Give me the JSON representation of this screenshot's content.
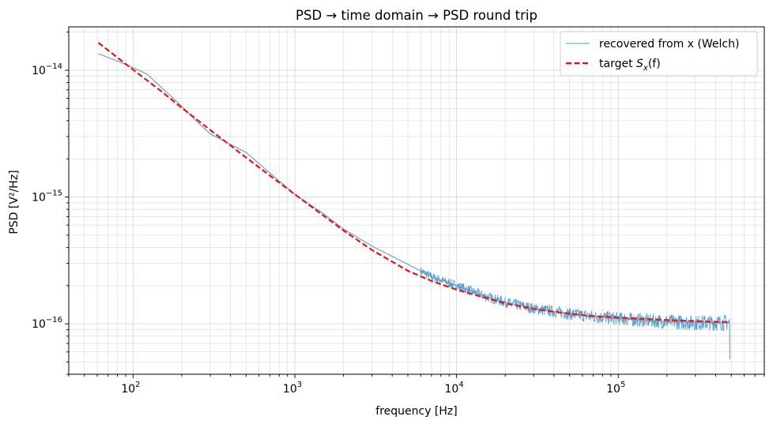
{
  "chart_data": {
    "type": "line",
    "title": "PSD → time domain → PSD round trip",
    "xlabel": "frequency [Hz]",
    "ylabel": "PSD  [V²/Hz]",
    "xscale": "log",
    "yscale": "log",
    "xlim": [
      40,
      800000
    ],
    "ylim": [
      4e-17,
      2.2e-14
    ],
    "grid": true,
    "legend_position": "top-right",
    "x_tick_labels": [
      {
        "value": 100,
        "base": "10",
        "exp": "2"
      },
      {
        "value": 1000,
        "base": "10",
        "exp": "3"
      },
      {
        "value": 10000,
        "base": "10",
        "exp": "4"
      },
      {
        "value": 100000,
        "base": "10",
        "exp": "5"
      }
    ],
    "y_tick_labels": [
      {
        "value": 1e-14,
        "base": "10",
        "exp": "−14"
      },
      {
        "value": 1e-15,
        "base": "10",
        "exp": "−15"
      },
      {
        "value": 1e-16,
        "base": "10",
        "exp": "−16"
      }
    ],
    "series": [
      {
        "name": "recovered from x (Welch)",
        "color": "#5a9ec9",
        "style": "solid",
        "x": [
          61,
          80,
          100,
          122,
          150,
          200,
          250,
          300,
          400,
          500,
          700,
          1000,
          1500,
          2000,
          3000,
          5000,
          7000,
          10000,
          15000,
          20000,
          30000,
          50000,
          70000,
          100000,
          150000,
          200000,
          300000,
          400000,
          488000,
          490000,
          491000
        ],
        "y": [
          1.35e-14,
          1.18e-14,
          1.05e-14,
          9.3e-15,
          7.3e-15,
          5.2e-15,
          3.9e-15,
          3.15e-15,
          2.6e-15,
          2.25e-15,
          1.55e-15,
          1.05e-15,
          7.4e-16,
          5.6e-16,
          4.1e-16,
          2.95e-16,
          2.35e-16,
          2e-16,
          1.65e-16,
          1.48e-16,
          1.32e-16,
          1.2e-16,
          1.14e-16,
          1.1e-16,
          1.06e-16,
          1.04e-16,
          1.02e-16,
          1.02e-16,
          1.02e-16,
          5.3e-17,
          5.3e-17
        ]
      },
      {
        "name": "target S_x(f)",
        "name_prefix": "target ",
        "name_math": "S",
        "name_sub": "x",
        "name_suffix": "(f)",
        "color": "#ee1111",
        "style": "dashed",
        "x": [
          61,
          80,
          100,
          150,
          200,
          300,
          500,
          700,
          1000,
          2000,
          3000,
          5000,
          7000,
          10000,
          20000,
          30000,
          50000,
          70000,
          100000,
          200000,
          300000,
          490000
        ],
        "y": [
          1.65e-14,
          1.26e-14,
          1.01e-14,
          6.8e-15,
          5.05e-15,
          3.38e-15,
          2.05e-15,
          1.48e-15,
          1.05e-15,
          5.45e-16,
          3.82e-16,
          2.62e-16,
          2.18e-16,
          1.86e-16,
          1.45e-16,
          1.31e-16,
          1.2e-16,
          1.15e-16,
          1.12e-16,
          1.07e-16,
          1.05e-16,
          1.03e-16
        ]
      }
    ]
  }
}
